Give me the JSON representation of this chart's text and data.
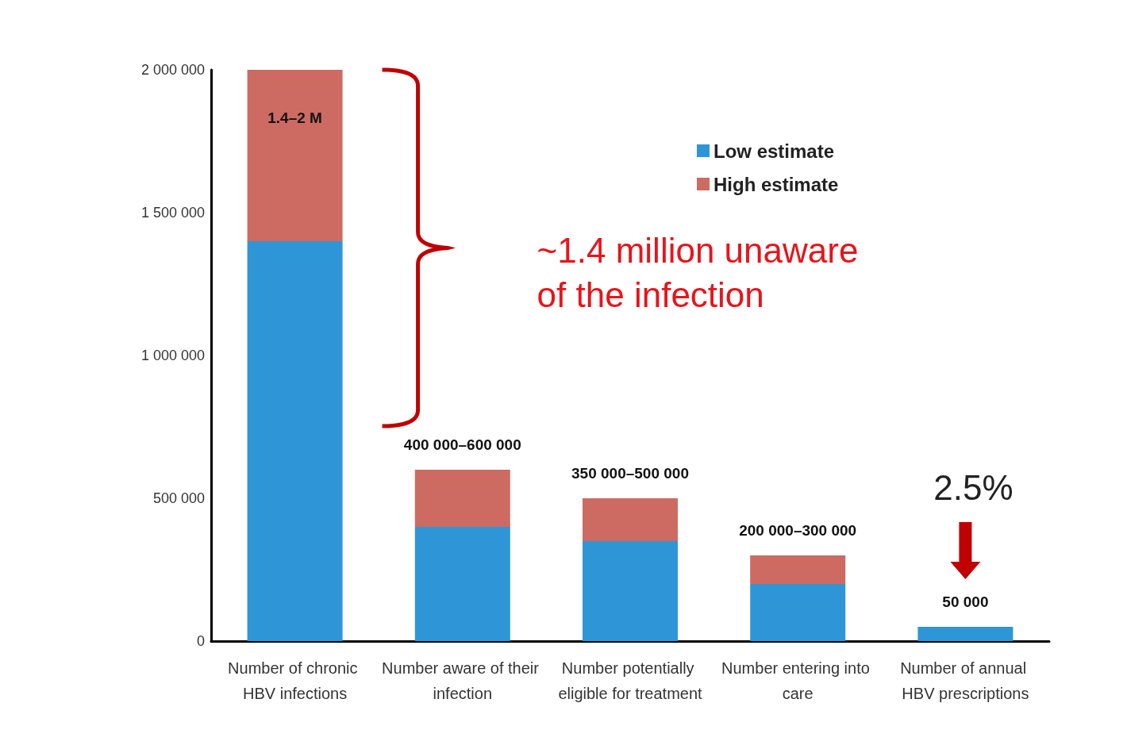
{
  "chart_data": {
    "type": "bar",
    "stacked": true,
    "categories": [
      "Number of chronic HBV infections",
      "Number aware of their infection",
      "Number potentially eligible for treatment",
      "Number entering into care",
      "Number of annual HBV prescriptions"
    ],
    "series": [
      {
        "name": "Low estimate",
        "color": "#2e96d6",
        "values": [
          1400000,
          400000,
          350000,
          200000,
          50000
        ]
      },
      {
        "name": "High estimate",
        "color": "#cd6b62",
        "values": [
          600000,
          200000,
          150000,
          100000,
          null
        ]
      }
    ],
    "ylim": [
      0,
      2000000
    ],
    "yticks": [
      {
        "value": 0,
        "label": "0"
      },
      {
        "value": 500000,
        "label": "500 000"
      },
      {
        "value": 1000000,
        "label": "1 000 000"
      },
      {
        "value": 1500000,
        "label": "1 500 000"
      },
      {
        "value": 2000000,
        "label": "2 000 000"
      }
    ],
    "grid": false,
    "legend": "top right",
    "annotations": [
      "~1.4 million unaware of the infection",
      "2.5%",
      "1.4–2 M",
      "400 000–600 000",
      "350 000–500 000",
      "200 000–300 000",
      "50 000"
    ]
  }
}
